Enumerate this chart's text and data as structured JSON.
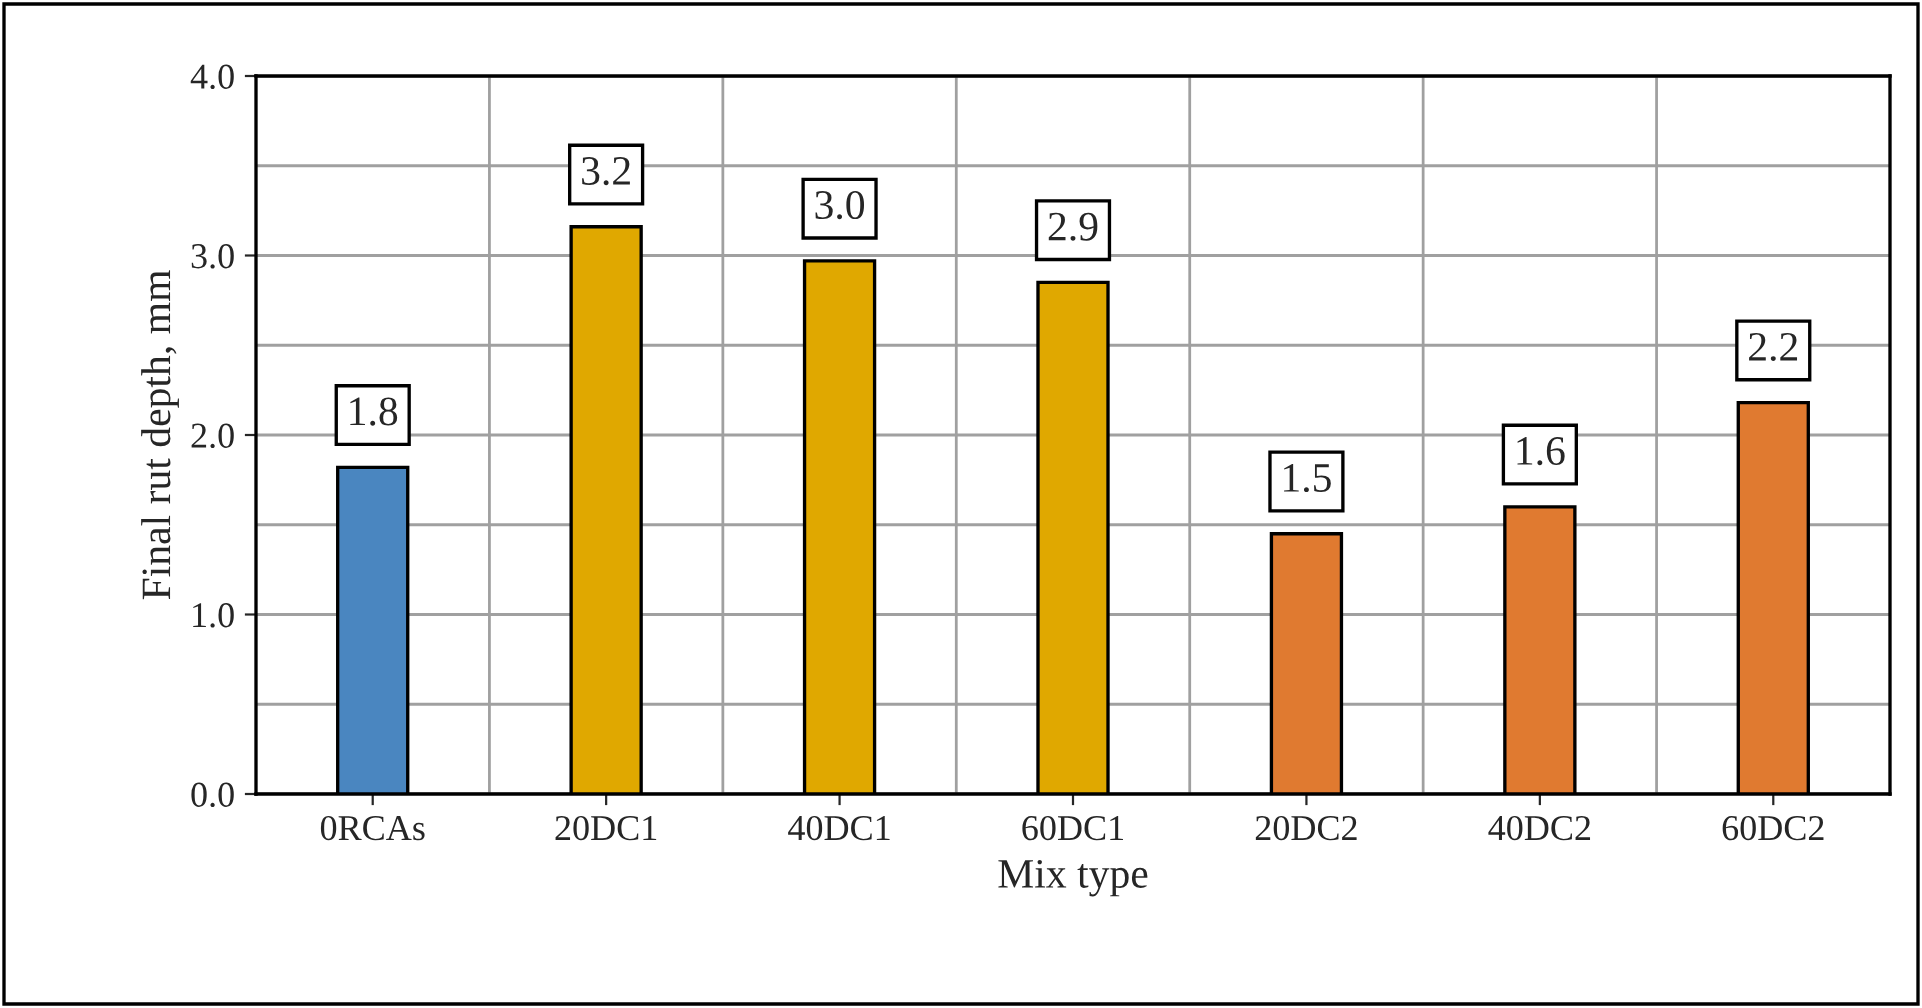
{
  "chart_data": {
    "type": "bar",
    "categories": [
      "0RCAs",
      "20DC1",
      "40DC1",
      "60DC1",
      "20DC2",
      "40DC2",
      "60DC2"
    ],
    "values": [
      1.82,
      3.16,
      2.97,
      2.85,
      1.45,
      1.6,
      2.18
    ],
    "value_labels": [
      "1.8",
      "3.2",
      "3.0",
      "2.9",
      "1.5",
      "1.6",
      "2.2"
    ],
    "colors": [
      "#4a86c0",
      "#e0a800",
      "#e0a800",
      "#e0a800",
      "#e07a30",
      "#e07a30",
      "#e07a30"
    ],
    "xlabel": "Mix type",
    "ylabel": "Final rut depth, mm",
    "ylim": [
      0,
      4
    ],
    "yticks": [
      "0.0",
      "1.0",
      "2.0",
      "3.0",
      "4.0"
    ],
    "grid": true,
    "legend": false
  }
}
